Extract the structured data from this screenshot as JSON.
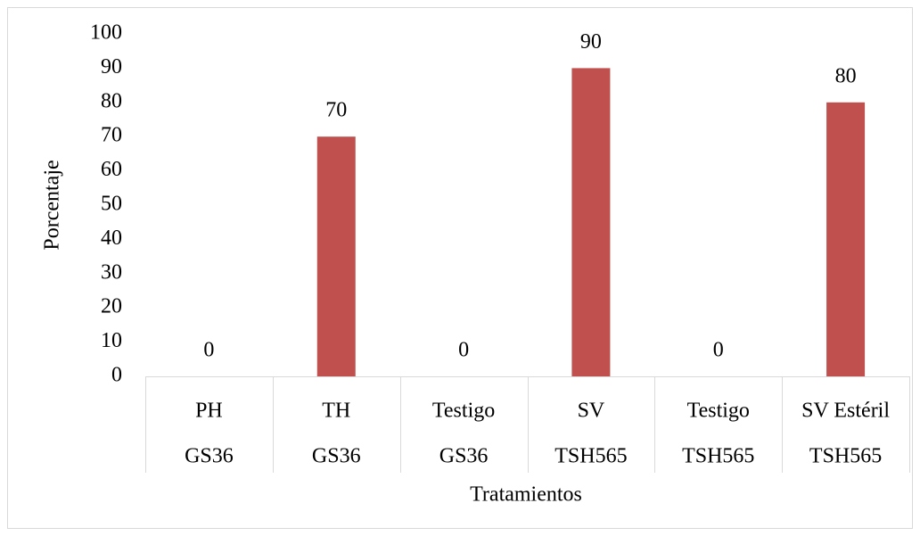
{
  "chart_data": {
    "type": "bar",
    "categories": [
      "PH",
      "TH",
      "Testigo",
      "SV",
      "Testigo",
      "SV Estéril"
    ],
    "subcategories": [
      "GS36",
      "GS36",
      "GS36",
      "TSH565",
      "TSH565",
      "TSH565"
    ],
    "values": [
      0,
      70,
      0,
      90,
      0,
      80
    ],
    "color": "#c0504d",
    "ylim": [
      0,
      100
    ],
    "yticks": [
      0,
      10,
      20,
      30,
      40,
      50,
      60,
      70,
      80,
      90,
      100
    ],
    "x_label": "Tratamientos",
    "y_label": "Porcentaje",
    "grid": false
  }
}
